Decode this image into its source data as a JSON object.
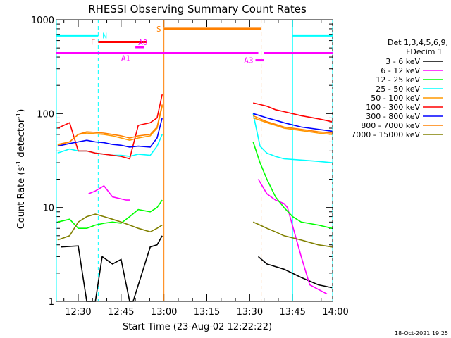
{
  "chart_data": {
    "type": "line",
    "title": "RHESSI Observing Summary Count Rates",
    "xlabel": "Start Time (23-Aug-02 12:22:22)",
    "ylabel_main": "Count Rate (s",
    "ylabel_sup1": "-1",
    "ylabel_mid": " detector",
    "ylabel_sup2": "-1",
    "ylabel_end": ")",
    "yscale": "log",
    "ylim": [
      1,
      1000
    ],
    "xlim": [
      "12:22:22",
      "13:59:00"
    ],
    "x_ticks": [
      "12:30",
      "12:45",
      "13:00",
      "13:15",
      "13:30",
      "13:45",
      "14:00"
    ],
    "y_ticks": [
      "1",
      "10",
      "100",
      "1000"
    ],
    "footer_date": "18-Oct-2021 19:25",
    "legend": {
      "header1": "Det 1,3,4,5,6,9,",
      "header2": "FDecim 1",
      "entries": [
        {
          "label": "3 - 6 keV",
          "color": "#000000"
        },
        {
          "label": "6 - 12 keV",
          "color": "#ff00ff"
        },
        {
          "label": "12 - 25 keV",
          "color": "#00ff00"
        },
        {
          "label": "25 - 50 keV",
          "color": "#00ffff"
        },
        {
          "label": "50 - 100 keV",
          "color": "#ff9900"
        },
        {
          "label": "100 - 300 keV",
          "color": "#ff0000"
        },
        {
          "label": "300 - 800 keV",
          "color": "#0000ff"
        },
        {
          "label": "800 - 7000 keV",
          "color": "#ff8000"
        },
        {
          "label": "7000 - 15000 keV",
          "color": "#808000"
        }
      ]
    },
    "flags": [
      {
        "label": "N",
        "color": "#00ffff",
        "segments": [
          [
            "12:22:22",
            "12:37"
          ],
          [
            "13:45",
            "13:59"
          ]
        ],
        "level": 680
      },
      {
        "label": "F",
        "color": "#ff0000",
        "segments": [
          [
            "12:37",
            "12:54"
          ]
        ],
        "level": 580
      },
      {
        "label": "A0",
        "color": "#ff00ff",
        "segments": [
          [
            "12:50",
            "12:53"
          ]
        ],
        "level": 510
      },
      {
        "label": "S",
        "color": "#ff8000",
        "segments": [
          [
            "13:00",
            "13:34"
          ]
        ],
        "level": 800
      },
      {
        "label": "A1",
        "color": "#ff00ff",
        "segments": [
          [
            "12:22:22",
            "13:33"
          ],
          [
            "13:35",
            "13:59"
          ]
        ],
        "level": 440
      },
      {
        "label": "A3",
        "color": "#ff00ff",
        "segments": [
          [
            "13:32",
            "13:35"
          ]
        ],
        "level": 370
      }
    ],
    "vlines": [
      {
        "time": "12:22:22",
        "color": "#00ffff",
        "style": "solid"
      },
      {
        "time": "12:37",
        "color": "#00ffff",
        "style": "dashed"
      },
      {
        "time": "13:00",
        "color": "#ff8000",
        "style": "solid"
      },
      {
        "time": "13:34",
        "color": "#ff8000",
        "style": "dashed"
      },
      {
        "time": "13:45",
        "color": "#00ffff",
        "style": "solid"
      },
      {
        "time": "13:59",
        "color": "#00ffff",
        "style": "dashed"
      }
    ],
    "series": [
      {
        "name": "3 - 6 keV",
        "color": "#000000",
        "points": [
          [
            12.4,
            3.8
          ],
          [
            12.5,
            3.9
          ],
          [
            12.55,
            1.0
          ],
          [
            12.6,
            1.0
          ],
          [
            12.64,
            3.0
          ],
          [
            12.7,
            2.5
          ],
          [
            12.75,
            2.8
          ],
          [
            12.8,
            1.0
          ],
          [
            12.82,
            1.0
          ],
          [
            12.92,
            3.8
          ],
          [
            12.96,
            4.0
          ],
          [
            12.99,
            5.0
          ],
          [
            13.55,
            3.0
          ],
          [
            13.6,
            2.5
          ],
          [
            13.7,
            2.2
          ],
          [
            13.8,
            1.8
          ],
          [
            13.9,
            1.5
          ],
          [
            13.98,
            1.4
          ]
        ]
      },
      {
        "name": "6 - 12 keV",
        "color": "#ff00ff",
        "points": [
          [
            12.56,
            14
          ],
          [
            12.6,
            15
          ],
          [
            12.65,
            17
          ],
          [
            12.7,
            13
          ],
          [
            12.78,
            12
          ],
          [
            12.8,
            12
          ],
          [
            13.55,
            20
          ],
          [
            13.6,
            14
          ],
          [
            13.65,
            12
          ],
          [
            13.7,
            11
          ],
          [
            13.72,
            10
          ],
          [
            13.8,
            3
          ],
          [
            13.85,
            1.5
          ],
          [
            13.95,
            1.2
          ]
        ]
      },
      {
        "name": "12 - 25 keV",
        "color": "#00ff00",
        "points": [
          [
            12.38,
            7.0
          ],
          [
            12.45,
            7.5
          ],
          [
            12.5,
            6.0
          ],
          [
            12.55,
            6.0
          ],
          [
            12.6,
            6.5
          ],
          [
            12.65,
            6.8
          ],
          [
            12.7,
            7.0
          ],
          [
            12.75,
            6.8
          ],
          [
            12.8,
            8.0
          ],
          [
            12.85,
            9.5
          ],
          [
            12.92,
            9.0
          ],
          [
            12.96,
            10.0
          ],
          [
            12.99,
            12.0
          ],
          [
            13.52,
            50
          ],
          [
            13.56,
            30
          ],
          [
            13.6,
            20
          ],
          [
            13.65,
            13
          ],
          [
            13.7,
            10
          ],
          [
            13.75,
            8.0
          ],
          [
            13.8,
            7.0
          ],
          [
            13.9,
            6.5
          ],
          [
            13.98,
            6.0
          ]
        ]
      },
      {
        "name": "25 - 50 keV",
        "color": "#00ffff",
        "points": [
          [
            12.38,
            38
          ],
          [
            12.45,
            42
          ],
          [
            12.5,
            40
          ],
          [
            12.55,
            40
          ],
          [
            12.6,
            38
          ],
          [
            12.65,
            37
          ],
          [
            12.7,
            36
          ],
          [
            12.75,
            36
          ],
          [
            12.8,
            35
          ],
          [
            12.85,
            37
          ],
          [
            12.92,
            36
          ],
          [
            12.96,
            45
          ],
          [
            12.99,
            60
          ],
          [
            13.52,
            100
          ],
          [
            13.56,
            45
          ],
          [
            13.6,
            38
          ],
          [
            13.65,
            35
          ],
          [
            13.7,
            33
          ],
          [
            13.8,
            32
          ],
          [
            13.9,
            31
          ],
          [
            13.98,
            30
          ]
        ]
      },
      {
        "name": "50 - 100 keV",
        "color": "#ff9900",
        "points": [
          [
            12.38,
            46
          ],
          [
            12.45,
            50
          ],
          [
            12.5,
            60
          ],
          [
            12.55,
            62
          ],
          [
            12.6,
            61
          ],
          [
            12.65,
            60
          ],
          [
            12.7,
            58
          ],
          [
            12.75,
            55
          ],
          [
            12.8,
            52
          ],
          [
            12.85,
            55
          ],
          [
            12.92,
            58
          ],
          [
            12.96,
            70
          ],
          [
            12.99,
            120
          ],
          [
            13.52,
            90
          ],
          [
            13.56,
            85
          ],
          [
            13.6,
            80
          ],
          [
            13.65,
            75
          ],
          [
            13.7,
            70
          ],
          [
            13.8,
            66
          ],
          [
            13.9,
            62
          ],
          [
            13.98,
            60
          ]
        ]
      },
      {
        "name": "100 - 300 keV",
        "color": "#ff0000",
        "points": [
          [
            12.38,
            70
          ],
          [
            12.45,
            80
          ],
          [
            12.5,
            40
          ],
          [
            12.55,
            40
          ],
          [
            12.6,
            38
          ],
          [
            12.65,
            37
          ],
          [
            12.7,
            36
          ],
          [
            12.75,
            35
          ],
          [
            12.8,
            33
          ],
          [
            12.85,
            75
          ],
          [
            12.92,
            80
          ],
          [
            12.96,
            90
          ],
          [
            12.99,
            160
          ],
          [
            13.52,
            130
          ],
          [
            13.56,
            125
          ],
          [
            13.6,
            120
          ],
          [
            13.65,
            110
          ],
          [
            13.7,
            105
          ],
          [
            13.8,
            95
          ],
          [
            13.9,
            88
          ],
          [
            13.98,
            82
          ]
        ]
      },
      {
        "name": "300 - 800 keV",
        "color": "#0000ff",
        "points": [
          [
            12.38,
            45
          ],
          [
            12.45,
            48
          ],
          [
            12.5,
            50
          ],
          [
            12.55,
            52
          ],
          [
            12.6,
            50
          ],
          [
            12.65,
            49
          ],
          [
            12.7,
            47
          ],
          [
            12.75,
            46
          ],
          [
            12.8,
            44
          ],
          [
            12.85,
            45
          ],
          [
            12.92,
            44
          ],
          [
            12.96,
            55
          ],
          [
            12.99,
            90
          ],
          [
            13.52,
            100
          ],
          [
            13.56,
            95
          ],
          [
            13.6,
            90
          ],
          [
            13.65,
            85
          ],
          [
            13.7,
            80
          ],
          [
            13.8,
            72
          ],
          [
            13.9,
            68
          ],
          [
            13.98,
            65
          ]
        ]
      },
      {
        "name": "800 - 7000 keV",
        "color": "#ff8000",
        "points": [
          [
            12.38,
            47
          ],
          [
            12.45,
            50
          ],
          [
            12.5,
            60
          ],
          [
            12.55,
            64
          ],
          [
            12.6,
            63
          ],
          [
            12.65,
            62
          ],
          [
            12.7,
            60
          ],
          [
            12.75,
            58
          ],
          [
            12.8,
            55
          ],
          [
            12.85,
            58
          ],
          [
            12.92,
            60
          ],
          [
            12.96,
            72
          ],
          [
            12.99,
            125
          ],
          [
            13.52,
            95
          ],
          [
            13.56,
            88
          ],
          [
            13.6,
            82
          ],
          [
            13.65,
            77
          ],
          [
            13.7,
            72
          ],
          [
            13.8,
            68
          ],
          [
            13.9,
            64
          ],
          [
            13.98,
            62
          ]
        ]
      },
      {
        "name": "7000 - 15000 keV",
        "color": "#808000",
        "points": [
          [
            12.38,
            4.5
          ],
          [
            12.45,
            5.0
          ],
          [
            12.5,
            7.0
          ],
          [
            12.55,
            8.0
          ],
          [
            12.6,
            8.5
          ],
          [
            12.65,
            8.0
          ],
          [
            12.7,
            7.5
          ],
          [
            12.75,
            7.0
          ],
          [
            12.8,
            6.5
          ],
          [
            12.85,
            6.0
          ],
          [
            12.92,
            5.5
          ],
          [
            12.96,
            6.0
          ],
          [
            12.99,
            6.5
          ],
          [
            13.52,
            7.0
          ],
          [
            13.56,
            6.5
          ],
          [
            13.6,
            6.0
          ],
          [
            13.65,
            5.5
          ],
          [
            13.7,
            5.0
          ],
          [
            13.8,
            4.5
          ],
          [
            13.9,
            4.0
          ],
          [
            13.98,
            3.8
          ]
        ]
      }
    ]
  }
}
